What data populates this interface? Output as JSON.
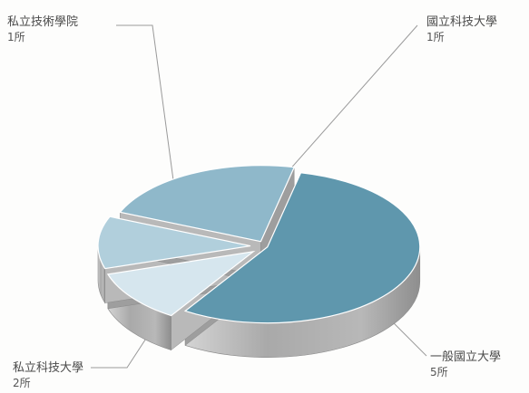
{
  "chart_data": {
    "type": "pie",
    "title": "",
    "unit": "所",
    "style": "3d-exploded",
    "slices": [
      {
        "name": "一般國立大學",
        "value": 5,
        "count_label": "5所",
        "color": "#5f97ad"
      },
      {
        "name": "國立科技大學",
        "value": 1,
        "count_label": "1所",
        "color": "#d6e6ee"
      },
      {
        "name": "私立技術學院",
        "value": 1,
        "count_label": "1所",
        "color": "#b1cfdc"
      },
      {
        "name": "私立科技大學",
        "value": 2,
        "count_label": "2所",
        "color": "#8fb8ca"
      }
    ]
  }
}
